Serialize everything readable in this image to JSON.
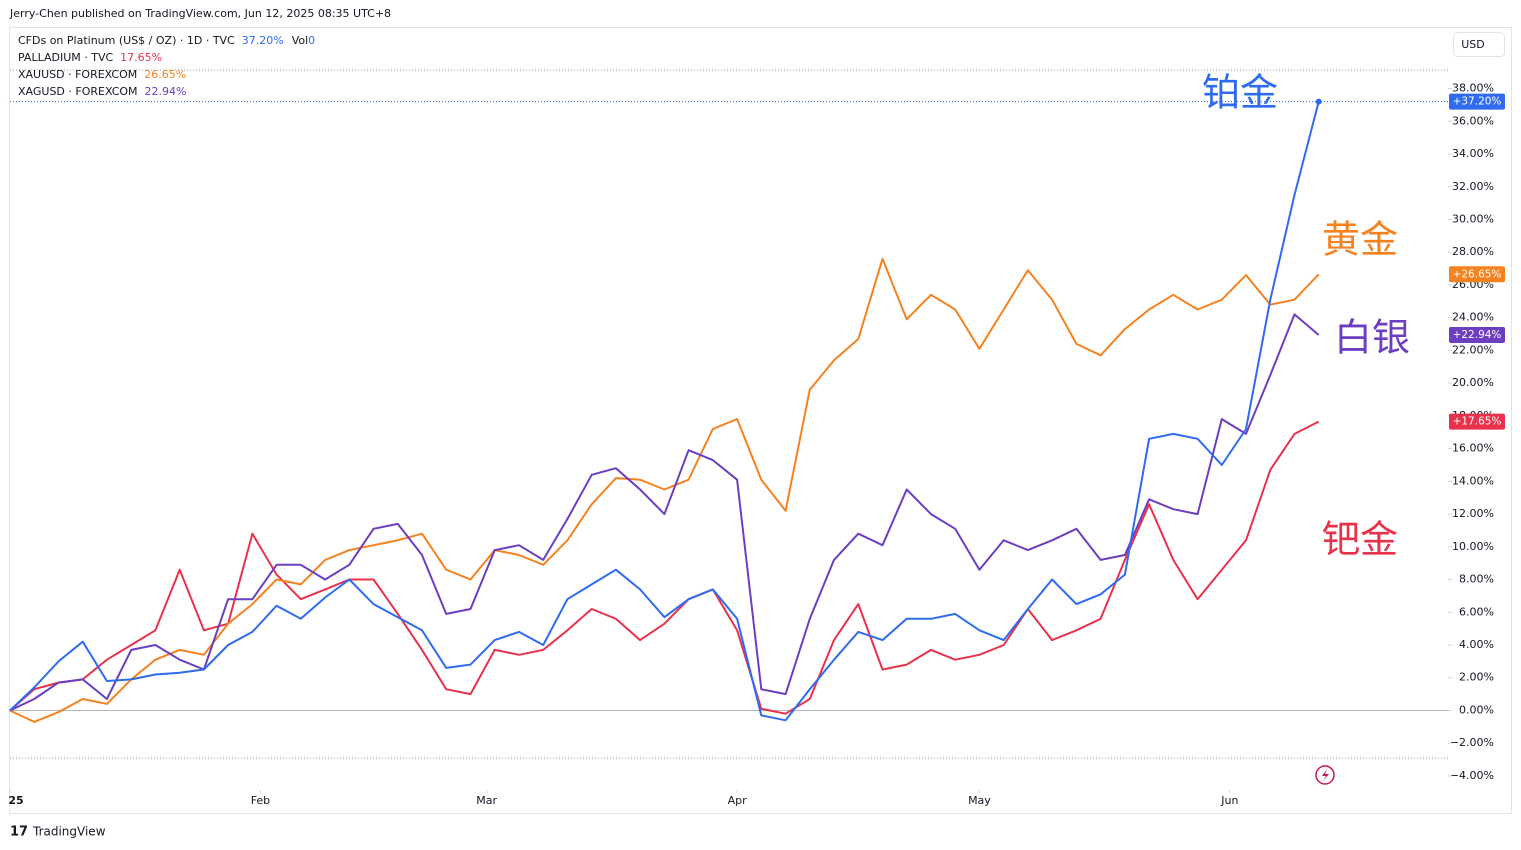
{
  "chart_data": {
    "type": "line",
    "title": "Jerry-Chen published on TradingView.com, Jun 12, 2025 08:35 UTC+8",
    "footer": "TradingView",
    "currency": "USD",
    "volume": {
      "label": "Vol",
      "value": 0
    },
    "x": [
      0,
      3,
      6,
      9,
      12,
      15,
      18,
      21,
      24,
      27,
      30,
      33,
      36,
      39,
      42,
      45,
      48,
      51,
      54,
      57,
      60,
      63,
      66,
      69,
      72,
      75,
      78,
      81,
      84,
      87,
      90,
      93,
      96,
      99,
      102,
      105,
      108,
      111,
      114,
      117,
      120,
      123,
      126,
      129,
      132,
      135,
      138,
      141,
      144,
      147,
      150,
      153,
      156,
      159,
      162
    ],
    "xlim": [
      0,
      178
    ],
    "xticks": [
      {
        "value": 0,
        "label": "25"
      },
      {
        "value": 31,
        "label": "Feb"
      },
      {
        "value": 59,
        "label": "Mar"
      },
      {
        "value": 90,
        "label": "Apr"
      },
      {
        "value": 120,
        "label": "May"
      },
      {
        "value": 151,
        "label": "Jun"
      }
    ],
    "ylim": [
      -4.86,
      41.7
    ],
    "yticks": [
      {
        "value": -4,
        "label": "−4.00%"
      },
      {
        "value": -2,
        "label": "−2.00%"
      },
      {
        "value": 0,
        "label": "0.00%"
      },
      {
        "value": 2,
        "label": "2.00%"
      },
      {
        "value": 4,
        "label": "4.00%"
      },
      {
        "value": 6,
        "label": "6.00%"
      },
      {
        "value": 8,
        "label": "8.00%"
      },
      {
        "value": 10,
        "label": "10.00%"
      },
      {
        "value": 12,
        "label": "12.00%"
      },
      {
        "value": 14,
        "label": "14.00%"
      },
      {
        "value": 16,
        "label": "16.00%"
      },
      {
        "value": 18,
        "label": "18.00%"
      },
      {
        "value": 20,
        "label": "20.00%"
      },
      {
        "value": 22,
        "label": "22.00%"
      },
      {
        "value": 24,
        "label": "24.00%"
      },
      {
        "value": 26,
        "label": "26.00%"
      },
      {
        "value": 28,
        "label": "28.00%"
      },
      {
        "value": 30,
        "label": "30.00%"
      },
      {
        "value": 32,
        "label": "32.00%"
      },
      {
        "value": 34,
        "label": "34.00%"
      },
      {
        "value": 36,
        "label": "36.00%"
      },
      {
        "value": 38,
        "label": "38.00%"
      }
    ],
    "series": [
      {
        "name": "CFDs on Platinum (US$ / OZ) · 1D · TVC",
        "color": "#2f6bef",
        "annotation": "铂金",
        "legend_label": "37.20%",
        "last_label": "+37.20%",
        "values": [
          0,
          1.4,
          3.0,
          4.2,
          1.8,
          1.9,
          2.2,
          2.3,
          2.5,
          4.0,
          4.8,
          6.4,
          5.6,
          6.9,
          8.0,
          6.5,
          5.7,
          4.9,
          2.6,
          2.8,
          4.3,
          4.8,
          4.0,
          6.8,
          7.7,
          8.6,
          7.4,
          5.7,
          6.8,
          7.4,
          5.6,
          -0.3,
          -0.6,
          1.3,
          3.1,
          4.8,
          4.3,
          5.6,
          5.6,
          5.9,
          4.9,
          4.3,
          6.2,
          8.0,
          6.5,
          7.1,
          8.3,
          16.6,
          16.9,
          16.6,
          15.0,
          17.2,
          25.1,
          31.5,
          37.2
        ]
      },
      {
        "name": "PALLADIUM · TVC",
        "color": "#e8324b",
        "annotation": "钯金",
        "legend_label": "17.65%",
        "last_label": "+17.65%",
        "values": [
          0,
          1.3,
          1.7,
          1.9,
          3.1,
          4.0,
          4.9,
          8.6,
          4.9,
          5.3,
          10.8,
          8.3,
          6.8,
          7.4,
          8.0,
          8.0,
          5.9,
          3.7,
          1.3,
          1.0,
          3.7,
          3.4,
          3.7,
          4.9,
          6.2,
          5.6,
          4.3,
          5.3,
          6.8,
          7.4,
          4.9,
          0.1,
          -0.2,
          0.7,
          4.3,
          6.5,
          2.5,
          2.8,
          3.7,
          3.1,
          3.4,
          4.0,
          6.2,
          4.3,
          4.9,
          5.6,
          9.2,
          12.6,
          9.2,
          6.8,
          8.6,
          10.4,
          14.7,
          16.9,
          17.65
        ]
      },
      {
        "name": "XAUUSD · FOREXCOM",
        "color": "#f5821f",
        "annotation": "黄金",
        "legend_label": "26.65%",
        "last_label": "+26.65%",
        "values": [
          0,
          -0.7,
          -0.1,
          0.7,
          0.4,
          1.9,
          3.1,
          3.7,
          3.4,
          5.3,
          6.5,
          8.0,
          7.7,
          9.2,
          9.8,
          10.1,
          10.4,
          10.8,
          8.6,
          8.0,
          9.8,
          9.5,
          8.9,
          10.4,
          12.6,
          14.2,
          14.1,
          13.5,
          14.1,
          17.2,
          17.8,
          14.1,
          12.2,
          19.6,
          21.4,
          22.7,
          27.6,
          23.9,
          25.4,
          24.5,
          22.1,
          24.5,
          26.9,
          25.1,
          22.4,
          21.7,
          23.3,
          24.5,
          25.4,
          24.5,
          25.1,
          26.6,
          24.8,
          25.1,
          26.65
        ]
      },
      {
        "name": "XAGUSD · FOREXCOM",
        "color": "#6b3ec2",
        "annotation": "白银",
        "legend_label": "22.94%",
        "last_label": "+22.94%",
        "values": [
          0,
          0.7,
          1.7,
          1.9,
          0.7,
          3.7,
          4.0,
          3.1,
          2.5,
          6.8,
          6.8,
          8.9,
          8.9,
          8.0,
          8.9,
          11.1,
          11.4,
          9.5,
          5.9,
          6.2,
          9.8,
          10.1,
          9.2,
          11.7,
          14.4,
          14.8,
          13.5,
          12.0,
          15.9,
          15.3,
          14.1,
          1.3,
          1.0,
          5.6,
          9.2,
          10.8,
          10.1,
          13.5,
          12.0,
          11.1,
          8.6,
          10.4,
          9.8,
          10.4,
          11.1,
          9.2,
          9.5,
          12.9,
          12.3,
          12.0,
          17.8,
          16.9,
          20.5,
          24.2,
          22.94
        ]
      }
    ]
  }
}
